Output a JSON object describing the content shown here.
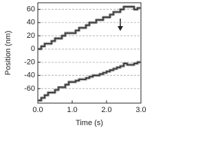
{
  "chart_data": {
    "type": "line",
    "x_label": "Time (s)",
    "y_label": "Position (nm)",
    "x": [
      0,
      0.1,
      0.2,
      0.3,
      0.4,
      0.5,
      0.6,
      0.7,
      0.8,
      0.9,
      1.0,
      1.1,
      1.2,
      1.3,
      1.4,
      1.5,
      1.6,
      1.7,
      1.8,
      1.9,
      2.0,
      2.1,
      2.2,
      2.3,
      2.4,
      2.5,
      2.6,
      2.7,
      2.8,
      2.9,
      3.0
    ],
    "series": [
      {
        "color": "#1a1a1a",
        "values": [
          0,
          4,
          8,
          8,
          12,
          16,
          16,
          20,
          24,
          24,
          24,
          28,
          32,
          32,
          36,
          40,
          40,
          44,
          44,
          48,
          48,
          52,
          56,
          56,
          60,
          64,
          64,
          64,
          60,
          62,
          62
        ]
      },
      {
        "color": "#1a1a1a",
        "values": [
          -78,
          -74,
          -70,
          -66,
          -66,
          -62,
          -58,
          -58,
          -54,
          -50,
          -50,
          -48,
          -46,
          -46,
          -44,
          -42,
          -40,
          -40,
          -38,
          -36,
          -34,
          -32,
          -30,
          -28,
          -26,
          -22,
          -24,
          -24,
          -22,
          -20,
          -20
        ]
      }
    ],
    "xlim": [
      0,
      3.0
    ],
    "xticks": [
      {
        "value": 0,
        "label": "0.0"
      },
      {
        "value": 1,
        "label": "1.0"
      },
      {
        "value": 2,
        "label": "2.0"
      },
      {
        "value": 3,
        "label": "3.0"
      }
    ],
    "ylim": [
      -82,
      70
    ],
    "yticks": [
      -60,
      -40,
      -20,
      0,
      20,
      40,
      60
    ],
    "grid": true
  }
}
